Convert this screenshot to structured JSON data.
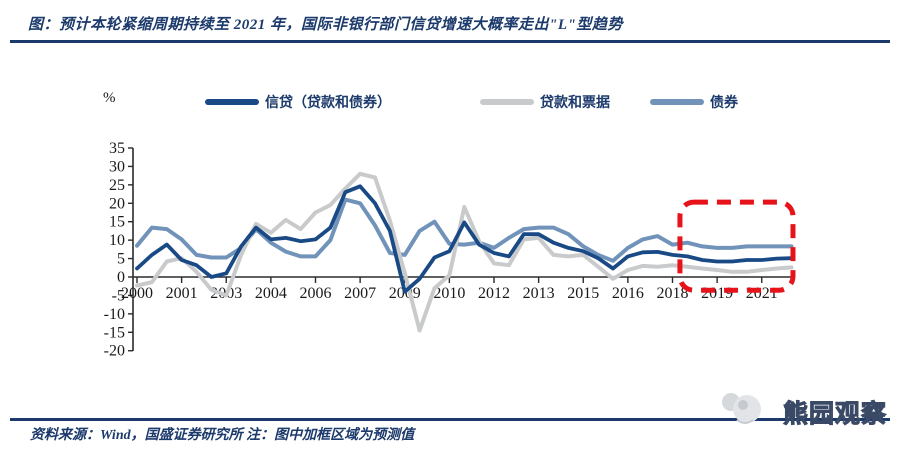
{
  "header": {
    "title": "图：预计本轮紧缩周期持续至 2021 年，国际非银行部门信贷增速大概率走出\"L\"型趋势"
  },
  "footer": {
    "source_note": "资料来源：Wind，国盛证券研究所 注：图中加框区域为预测值",
    "watermark_brand": "熊园观察"
  },
  "colors": {
    "accent_navy": "#1c3a6b",
    "forecast_red": "#e7131a"
  },
  "chart_data": {
    "type": "line",
    "unit_label": "%",
    "grid": false,
    "legend_position": "top",
    "ylim": [
      -20,
      35
    ],
    "y_ticks": [
      35,
      30,
      25,
      20,
      15,
      10,
      5,
      0,
      -5,
      -10,
      -15,
      -20
    ],
    "x_ticks": [
      {
        "label": "2000",
        "x": 2000
      },
      {
        "label": "2001",
        "x": 2001.5
      },
      {
        "label": "2003",
        "x": 2003
      },
      {
        "label": "2004",
        "x": 2004.5
      },
      {
        "label": "2006",
        "x": 2006
      },
      {
        "label": "2007",
        "x": 2007.5
      },
      {
        "label": "2009",
        "x": 2009
      },
      {
        "label": "2010",
        "x": 2010.5
      },
      {
        "label": "2012",
        "x": 2012
      },
      {
        "label": "2013",
        "x": 2013.5
      },
      {
        "label": "2015",
        "x": 2015
      },
      {
        "label": "2016",
        "x": 2016.5
      },
      {
        "label": "2018",
        "x": 2018
      },
      {
        "label": "2019",
        "x": 2019.5
      },
      {
        "label": "2021",
        "x": 2021
      }
    ],
    "x": [
      2000,
      2000.5,
      2001,
      2001.5,
      2002,
      2002.5,
      2003,
      2003.5,
      2004,
      2004.5,
      2005,
      2005.5,
      2006,
      2006.5,
      2007,
      2007.5,
      2008,
      2008.5,
      2009,
      2009.5,
      2010,
      2010.5,
      2011,
      2011.5,
      2012,
      2012.5,
      2013,
      2013.5,
      2014,
      2014.5,
      2015,
      2015.5,
      2016,
      2016.5,
      2017,
      2017.5,
      2018,
      2018.5,
      2019,
      2019.5,
      2020,
      2020.5,
      2021,
      2021.5,
      2022
    ],
    "series": [
      {
        "name": "信贷（贷款和债券）",
        "color": "#1a4a85",
        "width": 3.8,
        "values": [
          2.3,
          6.0,
          8.8,
          4.6,
          3.2,
          0.0,
          1.0,
          8.3,
          13.4,
          10.2,
          10.6,
          9.7,
          10.2,
          13.4,
          23.0,
          24.6,
          20.0,
          12.5,
          -4.0,
          -0.5,
          5.3,
          7.0,
          14.8,
          8.8,
          6.5,
          5.6,
          11.6,
          11.6,
          9.3,
          7.9,
          7.0,
          5.1,
          2.3,
          5.6,
          6.7,
          6.8,
          6.0,
          5.6,
          4.6,
          4.2,
          4.2,
          4.6,
          4.6,
          5.0,
          5.1
        ]
      },
      {
        "name": "贷款和票据",
        "color": "#c8cacc",
        "width": 4,
        "values": [
          -2.3,
          -1.4,
          4.2,
          5.1,
          1.4,
          -3.5,
          -5.0,
          6.0,
          14.4,
          12.0,
          15.5,
          13.0,
          17.5,
          19.5,
          24.0,
          28.0,
          27.0,
          15.3,
          1.0,
          -14.5,
          -3.0,
          0.5,
          19.0,
          9.7,
          3.7,
          3.2,
          10.2,
          10.6,
          6.0,
          5.6,
          6.0,
          2.8,
          -0.5,
          1.9,
          3.0,
          2.8,
          3.2,
          2.8,
          2.3,
          1.9,
          1.4,
          1.4,
          1.9,
          2.3,
          2.6
        ]
      },
      {
        "name": "债券",
        "color": "#7193ba",
        "width": 4,
        "values": [
          8.5,
          13.4,
          13.0,
          10.2,
          6.0,
          5.3,
          5.3,
          7.9,
          13.0,
          9.3,
          6.9,
          5.6,
          5.6,
          10.0,
          21.0,
          20.0,
          14.0,
          6.5,
          6.0,
          12.5,
          15.0,
          9.0,
          8.8,
          9.3,
          7.9,
          10.6,
          13.0,
          13.4,
          13.4,
          11.6,
          8.3,
          6.0,
          4.4,
          7.9,
          10.2,
          11.1,
          8.8,
          9.3,
          8.3,
          7.9,
          7.9,
          8.3,
          8.3,
          8.3,
          8.3
        ]
      }
    ],
    "forecast_box": {
      "x_start": 2018.25,
      "x_end": 2022.05,
      "y_top": 20.3,
      "y_bottom": -3.6,
      "color": "#e7131a"
    }
  }
}
